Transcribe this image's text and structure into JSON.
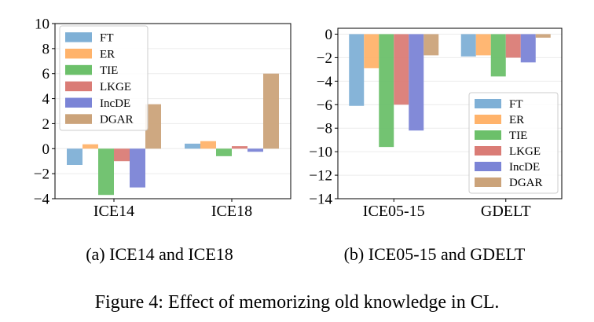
{
  "figure_caption": "Figure 4: Effect of memorizing old knowledge in CL.",
  "colors": {
    "FT": "#7fb0d6",
    "ER": "#ffb36b",
    "TIE": "#6cc06a",
    "LKGE": "#da7c76",
    "IncDE": "#7b84d6",
    "DGAR": "#cba37a"
  },
  "chart_data": [
    {
      "type": "bar",
      "caption": "(a) ICE14 and ICE18",
      "categories": [
        "ICE14",
        "ICE18"
      ],
      "series": [
        {
          "name": "FT",
          "values": [
            -1.3,
            0.4
          ]
        },
        {
          "name": "ER",
          "values": [
            0.35,
            0.6
          ]
        },
        {
          "name": "TIE",
          "values": [
            -3.7,
            -0.6
          ]
        },
        {
          "name": "LKGE",
          "values": [
            -1.0,
            0.2
          ]
        },
        {
          "name": "IncDE",
          "values": [
            -3.1,
            -0.25
          ]
        },
        {
          "name": "DGAR",
          "values": [
            3.55,
            6.0
          ]
        }
      ],
      "ylim": [
        -4,
        10
      ],
      "yticks": [
        -4,
        -2,
        0,
        2,
        4,
        6,
        8,
        10
      ],
      "grid": true,
      "legend": "upper-left",
      "xlabel": "",
      "ylabel": ""
    },
    {
      "type": "bar",
      "caption": "(b) ICE05-15 and GDELT",
      "categories": [
        "ICE05-15",
        "GDELT"
      ],
      "series": [
        {
          "name": "FT",
          "values": [
            -6.1,
            -1.9
          ]
        },
        {
          "name": "ER",
          "values": [
            -2.9,
            -1.8
          ]
        },
        {
          "name": "TIE",
          "values": [
            -9.6,
            -3.6
          ]
        },
        {
          "name": "LKGE",
          "values": [
            -6.0,
            -2.0
          ]
        },
        {
          "name": "IncDE",
          "values": [
            -8.2,
            -2.4
          ]
        },
        {
          "name": "DGAR",
          "values": [
            -1.8,
            -0.3
          ]
        }
      ],
      "ylim": [
        -14,
        0.5
      ],
      "yticks": [
        -14,
        -12,
        -10,
        -8,
        -6,
        -4,
        -2,
        0
      ],
      "grid": true,
      "legend": "lower-right",
      "xlabel": "",
      "ylabel": ""
    }
  ]
}
